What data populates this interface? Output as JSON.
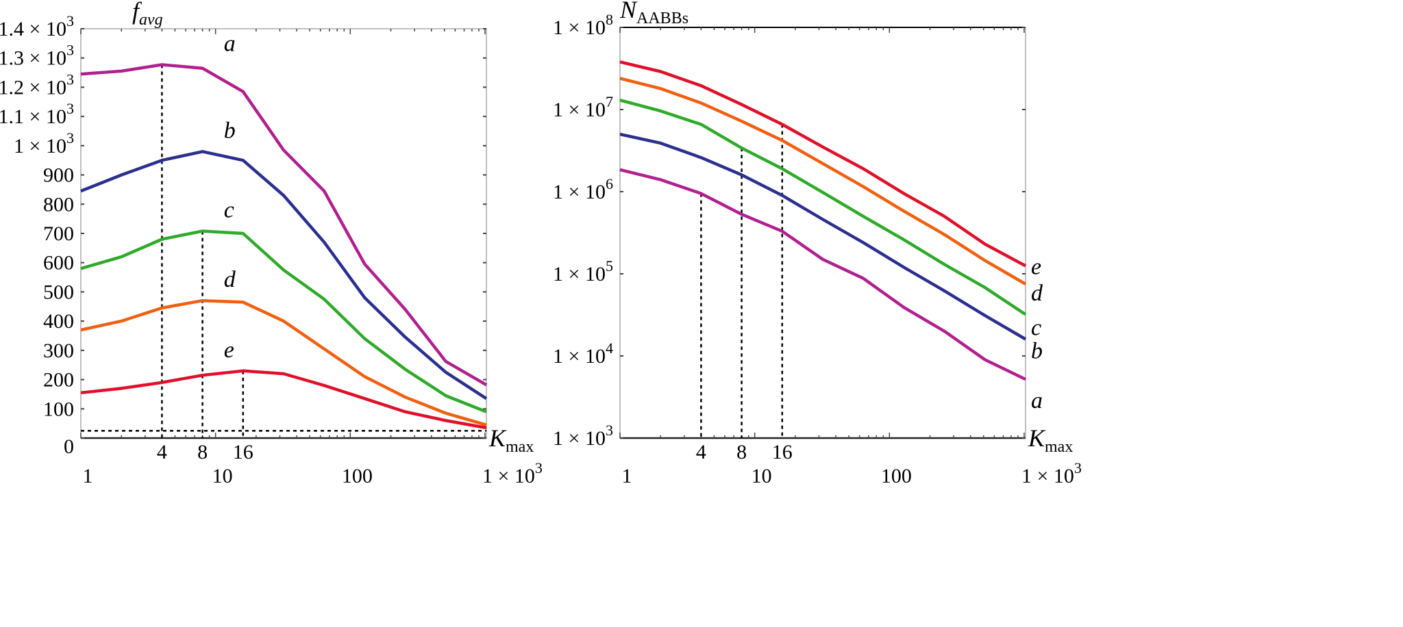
{
  "chart_data": [
    {
      "type": "line",
      "title": "",
      "ylabel": {
        "main": "f",
        "sub": "avg"
      },
      "xlabel": {
        "main": "K",
        "sub": "max"
      },
      "xscale": "log",
      "yscale": "linear",
      "xlim": [
        1,
        1024
      ],
      "ylim": [
        0,
        1400
      ],
      "x": [
        1,
        2,
        4,
        8,
        16,
        32,
        64,
        128,
        256,
        512,
        1024
      ],
      "series": [
        {
          "name": "a",
          "color": "#b0208f",
          "values": [
            1245,
            1255,
            1277,
            1265,
            1185,
            985,
            845,
            595,
            440,
            262,
            182
          ]
        },
        {
          "name": "b",
          "color": "#2b2f8f",
          "values": [
            845,
            900,
            950,
            980,
            950,
            830,
            670,
            480,
            345,
            225,
            135
          ]
        },
        {
          "name": "c",
          "color": "#2faa2a",
          "values": [
            580,
            620,
            680,
            708,
            700,
            575,
            475,
            340,
            235,
            145,
            90
          ]
        },
        {
          "name": "d",
          "color": "#f06010",
          "values": [
            370,
            400,
            445,
            470,
            465,
            400,
            305,
            210,
            140,
            85,
            45
          ]
        },
        {
          "name": "e",
          "color": "#e0102a",
          "values": [
            155,
            170,
            190,
            215,
            230,
            220,
            180,
            135,
            90,
            60,
            35
          ]
        }
      ],
      "yticks": [
        {
          "value": 0,
          "base": "0",
          "exp": ""
        },
        {
          "value": 100,
          "base": "100",
          "exp": ""
        },
        {
          "value": 200,
          "base": "200",
          "exp": ""
        },
        {
          "value": 300,
          "base": "300",
          "exp": ""
        },
        {
          "value": 400,
          "base": "400",
          "exp": ""
        },
        {
          "value": 500,
          "base": "500",
          "exp": ""
        },
        {
          "value": 600,
          "base": "600",
          "exp": ""
        },
        {
          "value": 700,
          "base": "700",
          "exp": ""
        },
        {
          "value": 800,
          "base": "800",
          "exp": ""
        },
        {
          "value": 900,
          "base": "900",
          "exp": ""
        },
        {
          "value": 1000,
          "base": "1 × 10",
          "exp": "3"
        },
        {
          "value": 1100,
          "base": "1.1 × 10",
          "exp": "3"
        },
        {
          "value": 1200,
          "base": "1.2 × 10",
          "exp": "3"
        },
        {
          "value": 1300,
          "base": "1.3 × 10",
          "exp": "3"
        },
        {
          "value": 1400,
          "base": "1.4 × 10",
          "exp": "3"
        }
      ],
      "xticks": [
        {
          "value": 1,
          "base": "1",
          "exp": ""
        },
        {
          "value": 10,
          "base": "10",
          "exp": ""
        },
        {
          "value": 100,
          "base": "100",
          "exp": ""
        },
        {
          "value": 1000,
          "base": "1 × 10",
          "exp": "3"
        }
      ],
      "marker_xticks": [
        "4",
        "8",
        "16"
      ],
      "reference_lines": {
        "horizontal_y": 25,
        "vertical": [
          {
            "x": 4,
            "series": "a"
          },
          {
            "x": 8,
            "series": "c"
          },
          {
            "x": 16,
            "series": "e"
          }
        ]
      }
    },
    {
      "type": "line",
      "title": "",
      "ylabel": {
        "main": "N",
        "sub": "AABBs"
      },
      "xlabel": {
        "main": "K",
        "sub": "max"
      },
      "xscale": "log",
      "yscale": "log",
      "xlim": [
        1,
        1024
      ],
      "ylim": [
        1000,
        100000000
      ],
      "x": [
        1,
        2,
        4,
        8,
        16,
        32,
        64,
        128,
        256,
        512,
        1024
      ],
      "series": [
        {
          "name": "e",
          "color": "#e0102a",
          "values": [
            38000000,
            29000000,
            19500000,
            11500000,
            6600000,
            3500000,
            1900000,
            950000,
            500000,
            230000,
            125000
          ]
        },
        {
          "name": "d",
          "color": "#f06010",
          "values": [
            24000000,
            18000000,
            12000000,
            7200000,
            4200000,
            2200000,
            1150000,
            580000,
            300000,
            145000,
            75000
          ]
        },
        {
          "name": "c",
          "color": "#2faa2a",
          "values": [
            13000000,
            9600000,
            6600000,
            3400000,
            1900000,
            980000,
            500000,
            260000,
            130000,
            68000,
            32000
          ]
        },
        {
          "name": "b",
          "color": "#2b2f8f",
          "values": [
            5000000,
            3900000,
            2600000,
            1600000,
            900000,
            460000,
            240000,
            120000,
            62000,
            31000,
            16000
          ]
        },
        {
          "name": "a",
          "color": "#b0208f",
          "values": [
            1850000,
            1400000,
            950000,
            530000,
            330000,
            150000,
            88000,
            39000,
            20000,
            9000,
            5200
          ]
        }
      ],
      "yticks": [
        {
          "value": 1000,
          "base": "1 × 10",
          "exp": "3"
        },
        {
          "value": 10000,
          "base": "1 × 10",
          "exp": "4"
        },
        {
          "value": 100000,
          "base": "1 × 10",
          "exp": "5"
        },
        {
          "value": 1000000,
          "base": "1 × 10",
          "exp": "6"
        },
        {
          "value": 10000000,
          "base": "1 × 10",
          "exp": "7"
        },
        {
          "value": 100000000,
          "base": "1 × 10",
          "exp": "8"
        }
      ],
      "xticks": [
        {
          "value": 1,
          "base": "1",
          "exp": ""
        },
        {
          "value": 10,
          "base": "10",
          "exp": ""
        },
        {
          "value": 100,
          "base": "100",
          "exp": ""
        },
        {
          "value": 1000,
          "base": "1 × 10",
          "exp": "3"
        }
      ],
      "marker_xticks": [
        "4",
        "8",
        "16"
      ],
      "reference_lines": {
        "vertical": [
          {
            "x": 4,
            "series": "a"
          },
          {
            "x": 8,
            "series": "c"
          },
          {
            "x": 16,
            "series": "e"
          }
        ]
      }
    }
  ]
}
